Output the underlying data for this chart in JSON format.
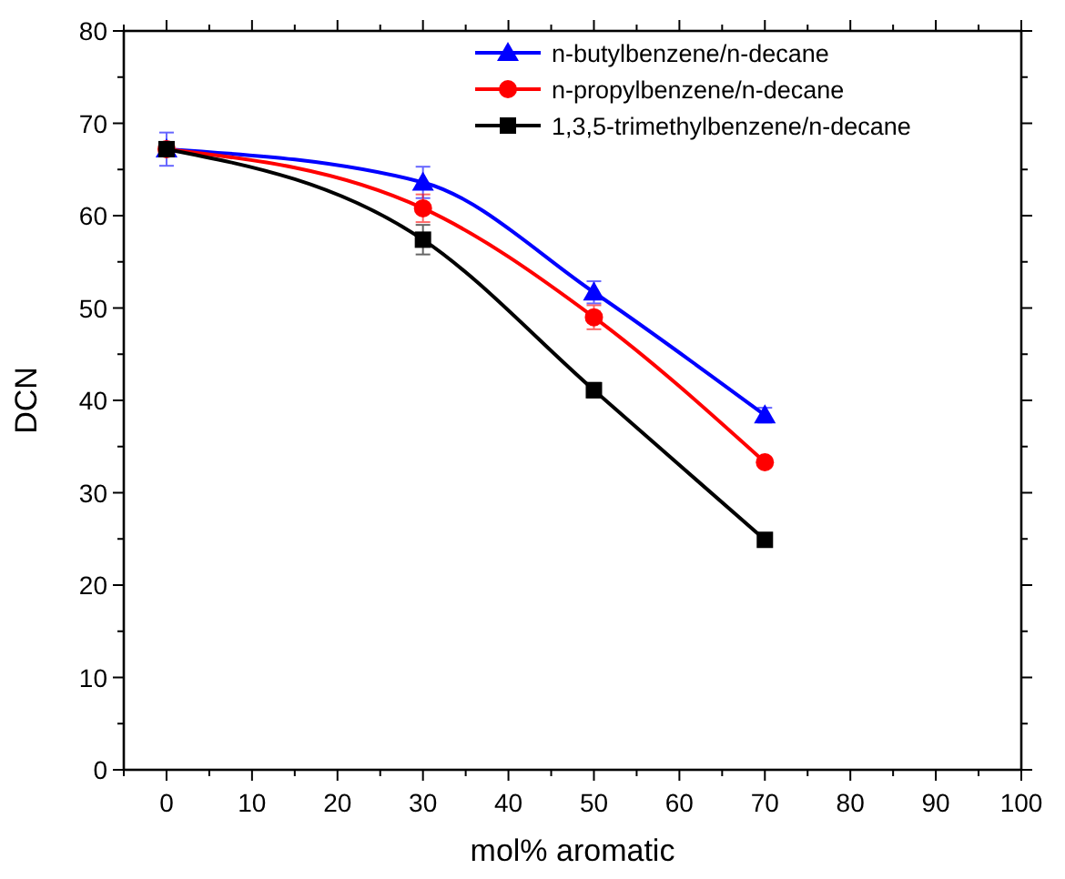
{
  "chart_data": {
    "type": "line",
    "xlabel": "mol% aromatic",
    "ylabel": "DCN",
    "x": [
      0,
      30,
      50,
      70
    ],
    "series": [
      {
        "name": "n-butylbenzene/n-decane",
        "color": "#0000ff",
        "marker": "triangle",
        "values": [
          67.2,
          63.6,
          51.7,
          38.4
        ],
        "errors": [
          1.8,
          1.7,
          1.2,
          0.8
        ]
      },
      {
        "name": "n-propylbenzene/n-decane",
        "color": "#ff0000",
        "marker": "circle",
        "values": [
          67.2,
          60.8,
          49.0,
          33.3
        ],
        "errors": [
          null,
          1.5,
          1.3,
          0.5
        ]
      },
      {
        "name": "1,3,5-trimethylbenzene/n-decane",
        "color": "#000000",
        "marker": "square",
        "values": [
          67.2,
          57.4,
          41.1,
          24.9
        ],
        "errors": [
          null,
          1.6,
          0.8,
          0.4
        ]
      }
    ],
    "xlim": [
      -5,
      100
    ],
    "xticks": [
      {
        "value": -5,
        "label": null
      },
      0,
      {
        "value": 5,
        "label": null
      },
      10,
      {
        "value": 15,
        "label": null
      },
      20,
      {
        "value": 25,
        "label": null
      },
      30,
      {
        "value": 35,
        "label": null
      },
      40,
      {
        "value": 45,
        "label": null
      },
      50,
      {
        "value": 55,
        "label": null
      },
      60,
      {
        "value": 65,
        "label": null
      },
      70,
      {
        "value": 75,
        "label": null
      },
      80,
      {
        "value": 85,
        "label": null
      },
      90,
      {
        "value": 95,
        "label": null
      },
      100
    ],
    "ylim": [
      0,
      80
    ],
    "yticks": [
      0,
      {
        "value": 5,
        "label": null
      },
      10,
      {
        "value": 15,
        "label": null
      },
      20,
      {
        "value": 25,
        "label": null
      },
      30,
      {
        "value": 35,
        "label": null
      },
      40,
      {
        "value": 45,
        "label": null
      },
      50,
      {
        "value": 55,
        "label": null
      },
      60,
      {
        "value": 65,
        "label": null
      },
      70,
      {
        "value": 75,
        "label": null
      },
      80
    ],
    "grid": false,
    "legend": "top right",
    "line_style": "solid"
  }
}
